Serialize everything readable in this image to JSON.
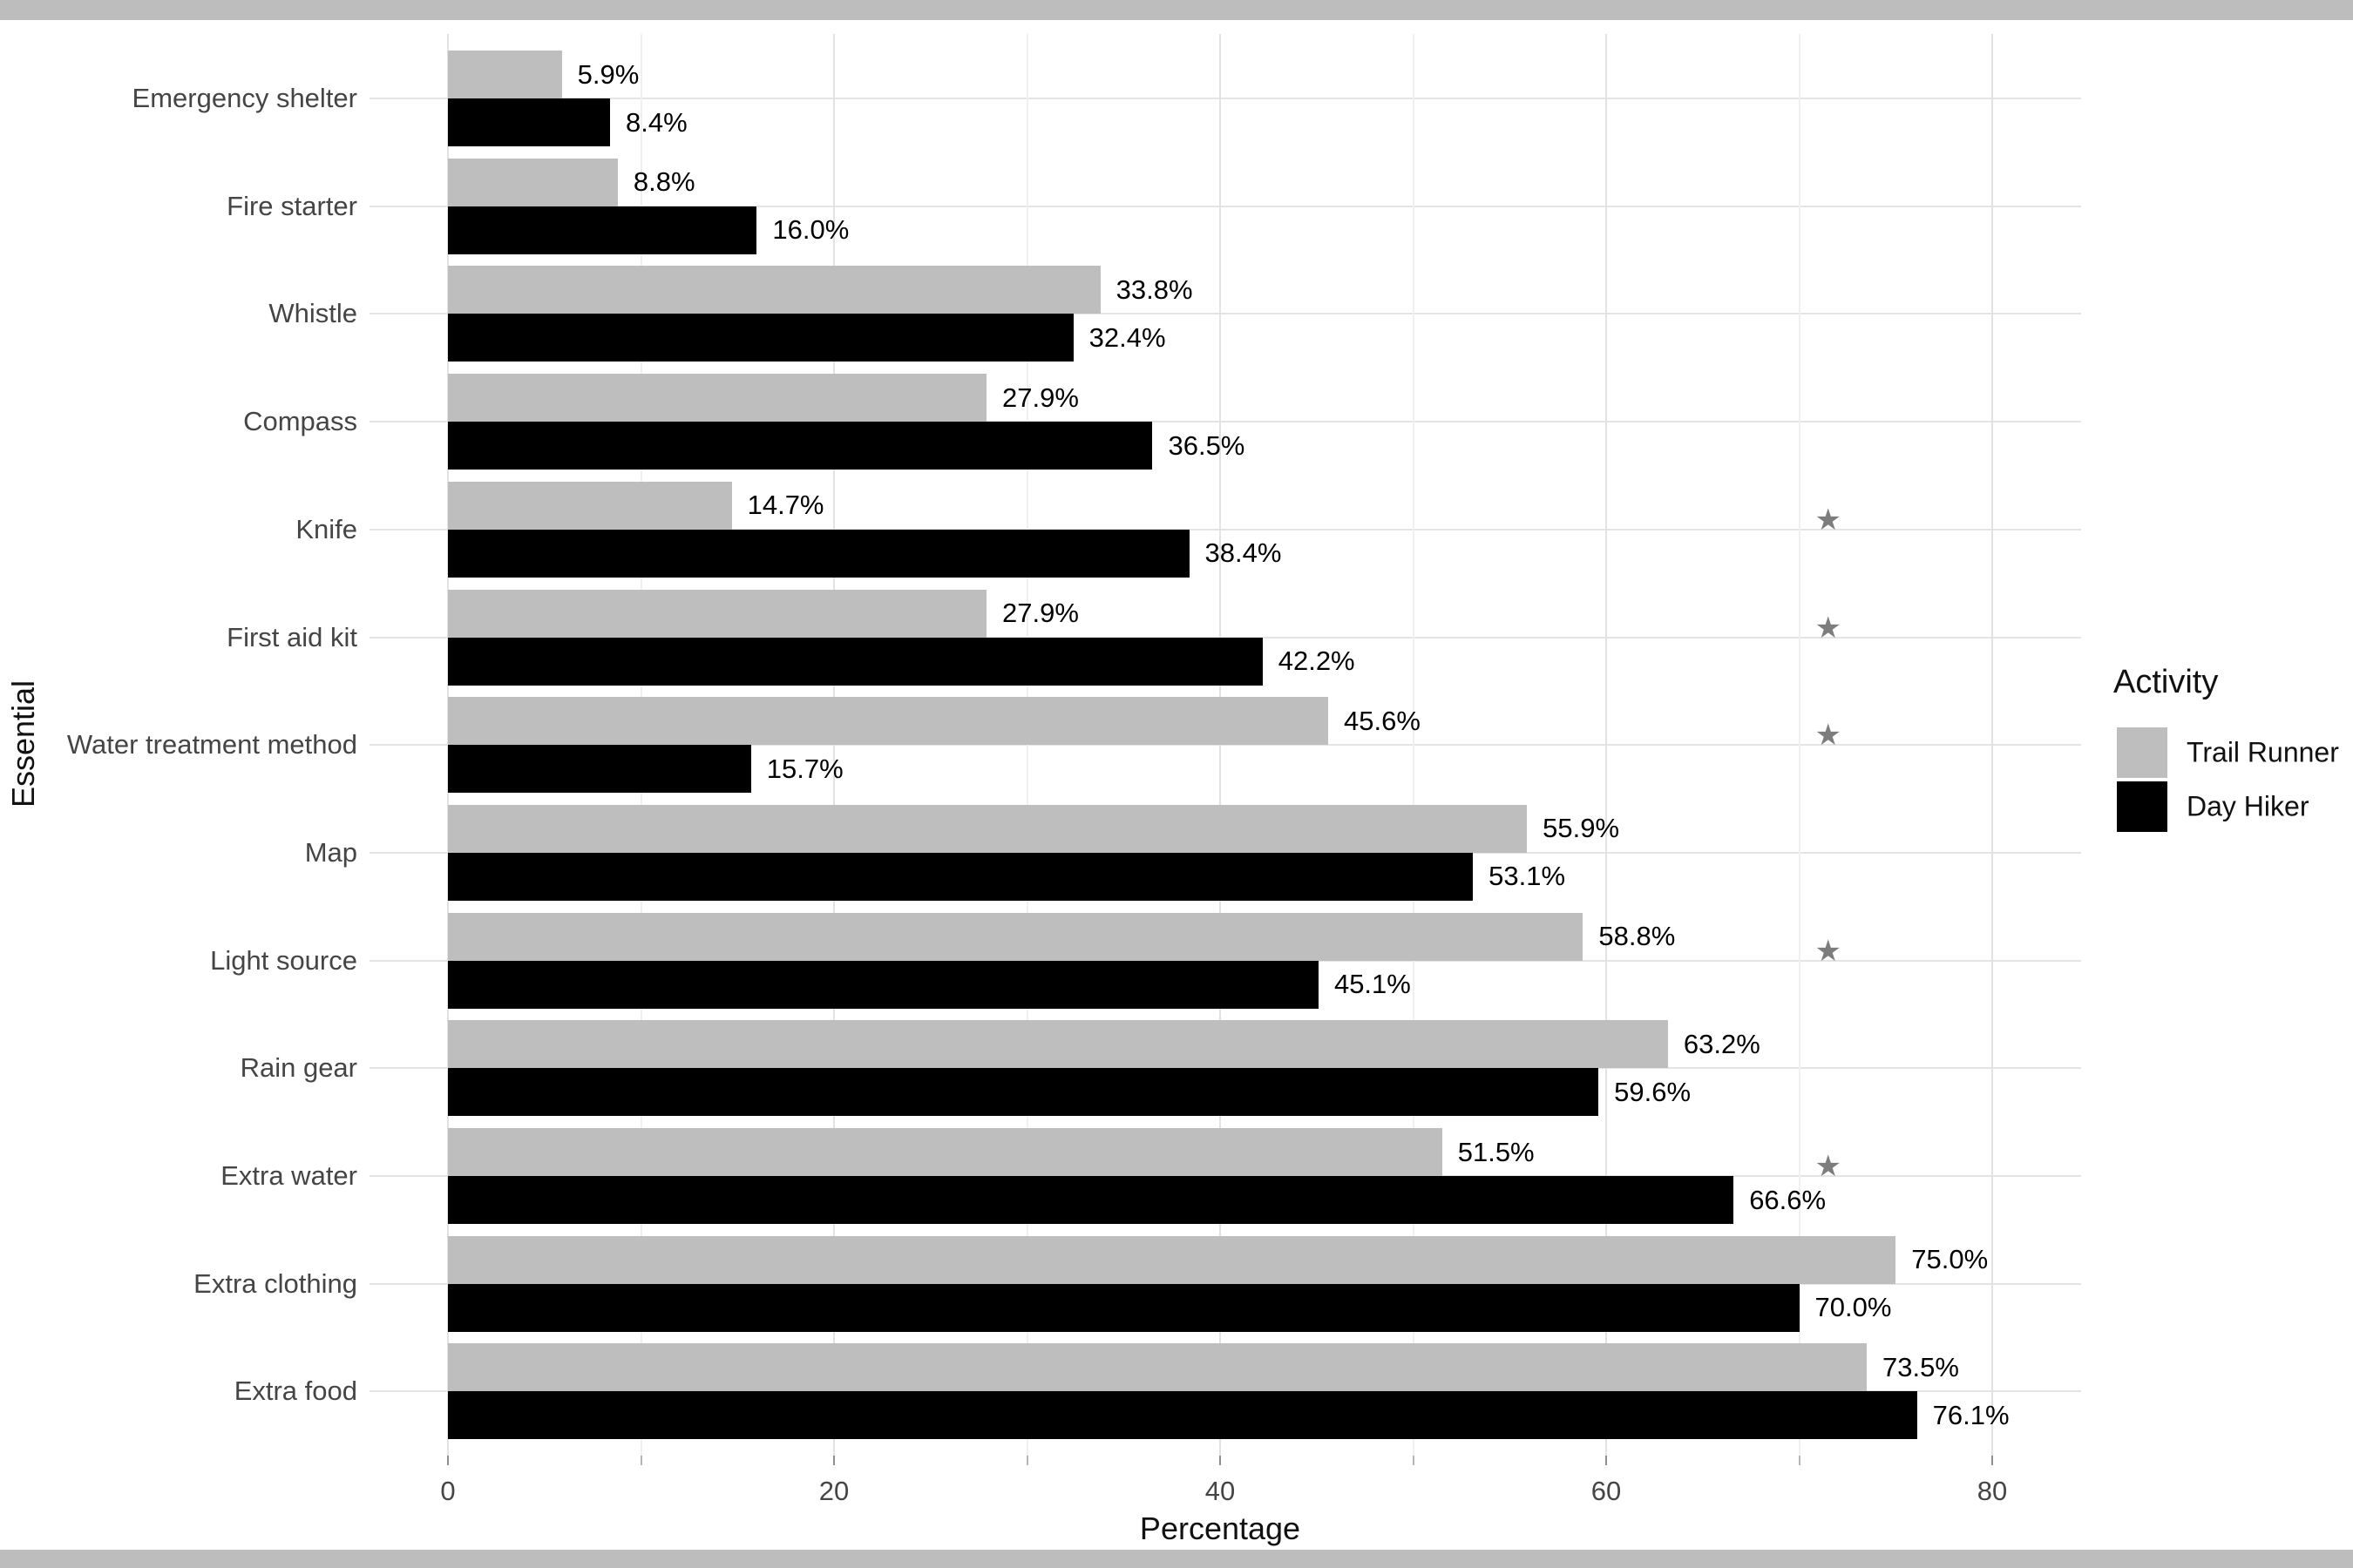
{
  "frame": {
    "top_strip_color": "#bdbdbd",
    "bottom_strip_color": "#bdbdbd",
    "background_color": "#ffffff"
  },
  "chart_data": {
    "type": "bar",
    "orientation": "horizontal",
    "title": "",
    "xlabel": "Percentage",
    "ylabel": "Essential",
    "xlim": [
      0,
      80
    ],
    "x_major_ticks": [
      0,
      20,
      40,
      60,
      80
    ],
    "x_major_tick_labels": [
      "0",
      "20",
      "40",
      "60",
      "80"
    ],
    "x_minor_ticks": [
      10,
      30,
      50,
      70
    ],
    "grid": true,
    "categories": [
      "Emergency shelter",
      "Fire starter",
      "Whistle",
      "Compass",
      "Knife",
      "First aid kit",
      "Water treatment method",
      "Map",
      "Light source",
      "Rain gear",
      "Extra water",
      "Extra clothing",
      "Extra food"
    ],
    "series": [
      {
        "name": "Trail Runner",
        "color": "#bebebe",
        "values": [
          5.9,
          8.8,
          33.8,
          27.9,
          14.7,
          27.9,
          45.6,
          55.9,
          58.8,
          63.2,
          51.5,
          75.0,
          73.5
        ],
        "value_labels": [
          "5.9%",
          "8.8%",
          "33.8%",
          "27.9%",
          "14.7%",
          "27.9%",
          "45.6%",
          "55.9%",
          "58.8%",
          "63.2%",
          "51.5%",
          "75.0%",
          "73.5%"
        ]
      },
      {
        "name": "Day Hiker",
        "color": "#000000",
        "values": [
          8.4,
          16.0,
          32.4,
          36.5,
          38.4,
          42.2,
          15.7,
          53.1,
          45.1,
          59.6,
          66.6,
          70.0,
          76.1
        ],
        "value_labels": [
          "8.4%",
          "16.0%",
          "32.4%",
          "36.5%",
          "38.4%",
          "42.2%",
          "15.7%",
          "53.1%",
          "45.1%",
          "59.6%",
          "66.6%",
          "70.0%",
          "76.1%"
        ]
      }
    ],
    "legend": {
      "title": "Activity",
      "position": "right",
      "entries": [
        "Trail Runner",
        "Day Hiker"
      ]
    },
    "significance_star_categories": [
      "Knife",
      "First aid kit",
      "Water treatment method",
      "Light source",
      "Extra water"
    ],
    "significance_star_symbol": "★",
    "significance_star_color": "#7d7d7d",
    "significance_star_x_percent": 71.5
  }
}
